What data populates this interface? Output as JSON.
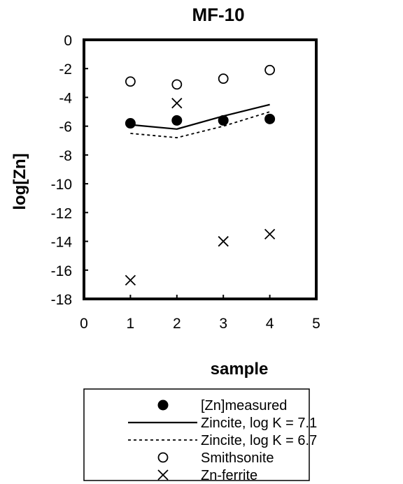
{
  "chart_data": {
    "type": "scatter",
    "title": "MF-10",
    "xlabel": "sample",
    "ylabel": "log[Zn]",
    "xlim": [
      0,
      5
    ],
    "ylim": [
      -18,
      0
    ],
    "x_ticks": [
      "0",
      "1",
      "2",
      "3",
      "4",
      "5"
    ],
    "y_ticks": [
      "0",
      "-2",
      "-4",
      "-6",
      "-8",
      "-10",
      "-12",
      "-14",
      "-16",
      "-18"
    ],
    "grid": false,
    "legend_position": "bottom",
    "series": [
      {
        "name": "[Zn]measured",
        "style": "filled-circle",
        "x": [
          1,
          2,
          3,
          4
        ],
        "y": [
          -5.8,
          -5.6,
          -5.6,
          -5.5
        ]
      },
      {
        "name": "Zincite, log K = 7.1",
        "style": "solid-line",
        "x": [
          1,
          2,
          3,
          4
        ],
        "y": [
          -5.9,
          -6.2,
          -5.3,
          -4.5
        ]
      },
      {
        "name": "Zincite, log K = 6.7",
        "style": "dotted-line",
        "x": [
          1,
          2,
          3,
          4
        ],
        "y": [
          -6.5,
          -6.8,
          -6.0,
          -5.0
        ]
      },
      {
        "name": "Smithsonite",
        "style": "open-circle",
        "x": [
          1,
          2,
          3,
          4
        ],
        "y": [
          -2.9,
          -3.1,
          -2.7,
          -2.1
        ]
      },
      {
        "name": "Zn-ferrite",
        "style": "x-marker",
        "x": [
          1,
          2,
          3,
          4
        ],
        "y": [
          -16.7,
          -4.4,
          -14.0,
          -13.5
        ]
      }
    ]
  }
}
